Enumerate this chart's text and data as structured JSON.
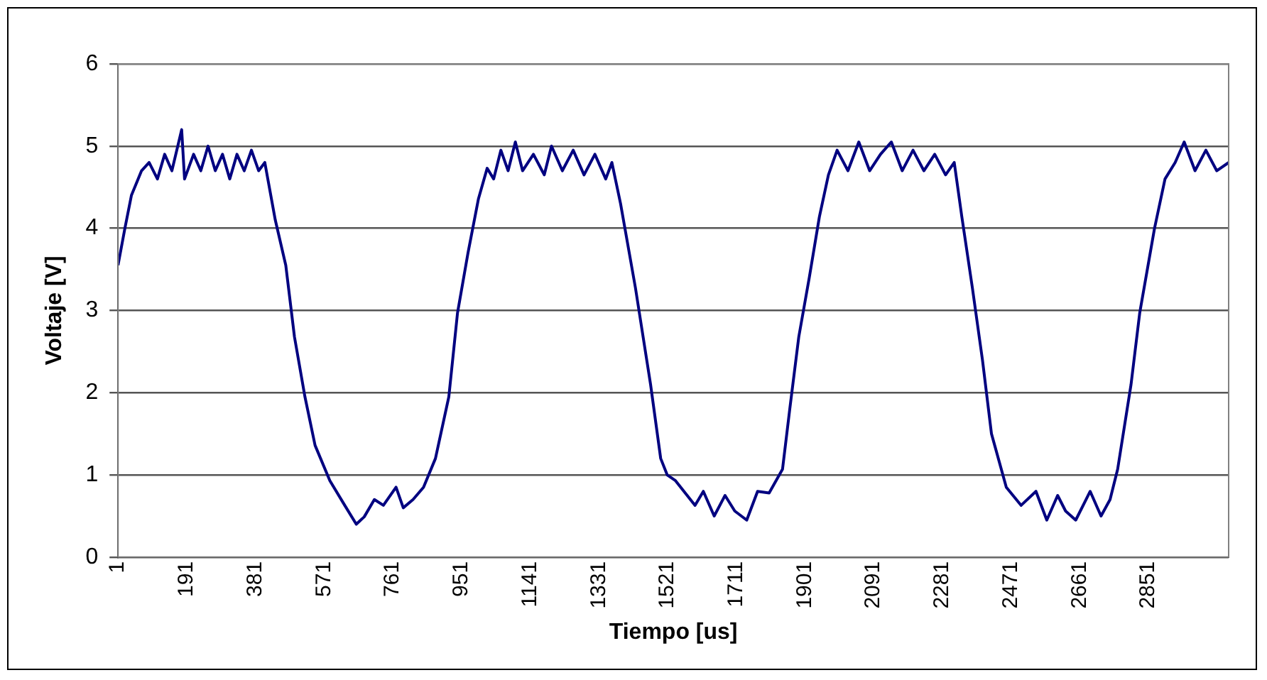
{
  "chart_data": {
    "type": "line",
    "xlabel": "Tiempo [us]",
    "ylabel": "Voltaje [V]",
    "x": [
      1,
      20,
      38,
      66,
      87,
      110,
      130,
      150,
      177,
      185,
      210,
      230,
      250,
      270,
      290,
      310,
      330,
      350,
      370,
      390,
      407,
      436,
      465,
      489,
      518,
      546,
      587,
      628,
      660,
      682,
      710,
      735,
      770,
      790,
      817,
      846,
      879,
      916,
      940,
      969,
      998,
      1022,
      1040,
      1060,
      1080,
      1100,
      1120,
      1150,
      1180,
      1200,
      1230,
      1260,
      1290,
      1320,
      1350,
      1367,
      1391,
      1432,
      1474,
      1502,
      1520,
      1543,
      1597,
      1620,
      1650,
      1680,
      1707,
      1740,
      1770,
      1802,
      1839,
      1859,
      1884,
      1913,
      1941,
      1966,
      1990,
      2020,
      2050,
      2080,
      2110,
      2140,
      2170,
      2200,
      2230,
      2260,
      2290,
      2314,
      2335,
      2364,
      2392,
      2417,
      2458,
      2499,
      2540,
      2570,
      2600,
      2622,
      2650,
      2690,
      2720,
      2745,
      2766,
      2803,
      2827,
      2868,
      2897,
      2925,
      2950,
      2980,
      3010,
      3040,
      3073
    ],
    "series": [
      {
        "color": "#000080",
        "values": [
          3.55,
          4.0,
          4.4,
          4.7,
          4.8,
          4.6,
          4.9,
          4.7,
          5.2,
          4.6,
          4.9,
          4.7,
          5.0,
          4.7,
          4.9,
          4.6,
          4.9,
          4.7,
          4.95,
          4.7,
          4.8,
          4.1,
          3.55,
          2.68,
          1.95,
          1.36,
          0.93,
          0.63,
          0.4,
          0.49,
          0.7,
          0.63,
          0.85,
          0.6,
          0.7,
          0.85,
          1.2,
          1.95,
          2.97,
          3.7,
          4.36,
          4.73,
          4.6,
          4.95,
          4.7,
          5.05,
          4.7,
          4.9,
          4.65,
          5.0,
          4.7,
          4.95,
          4.65,
          4.9,
          4.6,
          4.8,
          4.3,
          3.28,
          2.1,
          1.2,
          1.0,
          0.93,
          0.63,
          0.8,
          0.5,
          0.75,
          0.56,
          0.45,
          0.8,
          0.78,
          1.07,
          1.8,
          2.68,
          3.4,
          4.14,
          4.65,
          4.95,
          4.7,
          5.05,
          4.7,
          4.9,
          5.05,
          4.7,
          4.95,
          4.7,
          4.9,
          4.65,
          4.8,
          4.14,
          3.28,
          2.4,
          1.5,
          0.85,
          0.63,
          0.8,
          0.45,
          0.75,
          0.56,
          0.45,
          0.8,
          0.5,
          0.7,
          1.07,
          2.1,
          2.97,
          4.0,
          4.6,
          4.8,
          5.05,
          4.7,
          4.95,
          4.7,
          4.8
        ]
      }
    ],
    "xlim": [
      1,
      3073
    ],
    "xticks": [
      1,
      191,
      381,
      571,
      761,
      951,
      1141,
      1331,
      1521,
      1711,
      1901,
      2091,
      2281,
      2471,
      2661,
      2851
    ],
    "ylim": [
      0,
      6
    ],
    "yticks": [
      0,
      1,
      2,
      3,
      4,
      5,
      6
    ],
    "grid": "y",
    "legend": false,
    "marker": "none",
    "line_style": "solid"
  }
}
